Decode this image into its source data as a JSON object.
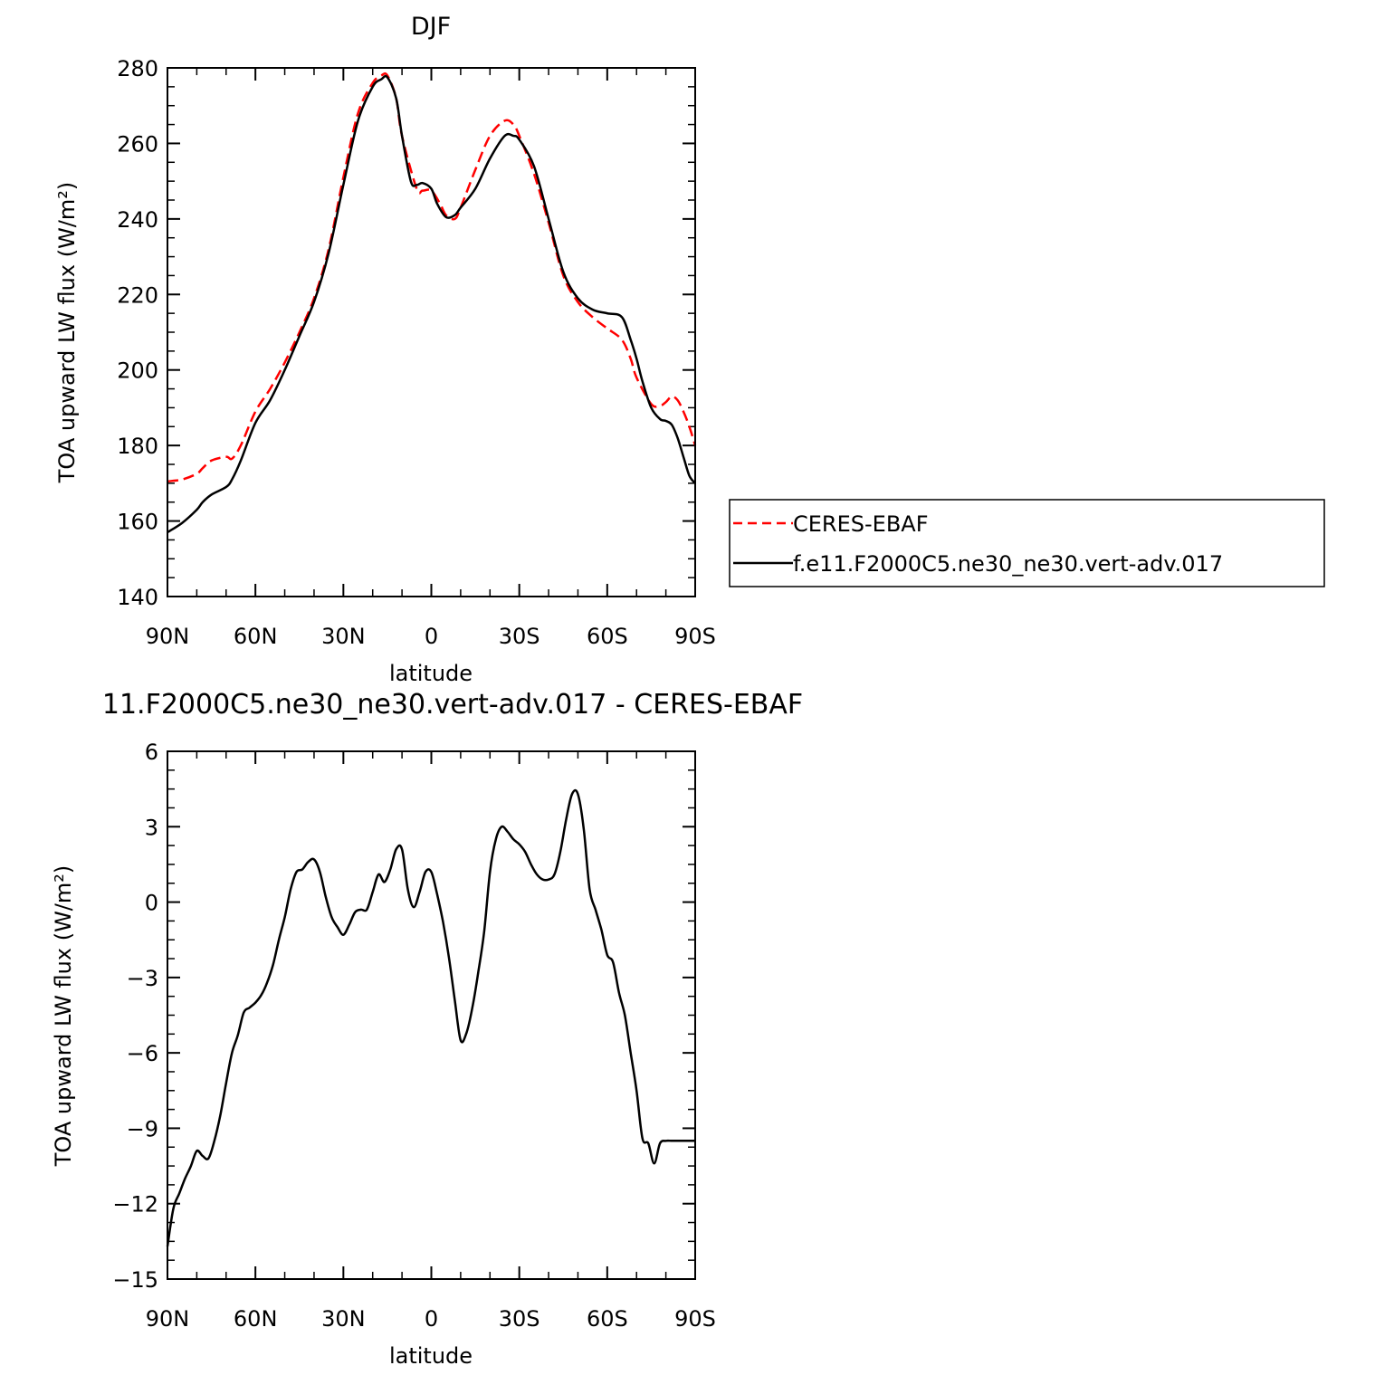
{
  "legend": {
    "entries": [
      {
        "label": "CERES-EBAF",
        "color": "#ff0000",
        "dash": "dashed"
      },
      {
        "label": "f.e11.F2000C5.ne30_ne30.vert-adv.017",
        "color": "#000000",
        "dash": "solid"
      }
    ]
  },
  "chart_data": [
    {
      "type": "line",
      "title": "DJF",
      "xlabel": "latitude",
      "ylabel": "TOA upward LW flux (W/m²)",
      "xlim": [
        90,
        -90
      ],
      "ylim": [
        140,
        280
      ],
      "yticks": [
        140,
        160,
        180,
        200,
        220,
        240,
        260,
        280
      ],
      "xticks": [
        90,
        60,
        30,
        0,
        -30,
        -60,
        -90
      ],
      "xticklabels": [
        "90N",
        "60N",
        "30N",
        "0",
        "30S",
        "60S",
        "90S"
      ],
      "grid": false,
      "legend_position": "right",
      "series": [
        {
          "name": "CERES-EBAF",
          "color": "#ff0000",
          "dash": "dashed",
          "x": [
            90,
            85,
            80,
            78,
            75,
            70,
            68,
            65,
            60,
            55,
            50,
            45,
            40,
            35,
            30,
            25,
            20,
            17,
            15,
            12,
            10,
            5,
            3,
            0,
            -3,
            -5,
            -8,
            -10,
            -15,
            -20,
            -25,
            -28,
            -30,
            -35,
            -40,
            -45,
            -50,
            -55,
            -60,
            -65,
            -68,
            -70,
            -75,
            -78,
            -80,
            -82,
            -84,
            -86,
            -88,
            -90
          ],
          "y": [
            170.5,
            171,
            172.5,
            174,
            176,
            177,
            176.5,
            180,
            189,
            195,
            202,
            210,
            219,
            232,
            251,
            268,
            276,
            278,
            278,
            272,
            262,
            248,
            247.5,
            247.5,
            244,
            241,
            240,
            243,
            253,
            262,
            266,
            265,
            262,
            252,
            239,
            225,
            218,
            214,
            211,
            208,
            203,
            198,
            191,
            190.5,
            191.5,
            193,
            192,
            189,
            185,
            180
          ]
        },
        {
          "name": "f.e11.F2000C5.ne30_ne30.vert-adv.017",
          "color": "#000000",
          "dash": "solid",
          "x": [
            90,
            85,
            80,
            78,
            75,
            70,
            68,
            65,
            60,
            55,
            50,
            45,
            40,
            35,
            30,
            25,
            20,
            17,
            15,
            12,
            10,
            7,
            5,
            3,
            0,
            -2,
            -5,
            -8,
            -10,
            -15,
            -20,
            -25,
            -28,
            -30,
            -35,
            -40,
            -45,
            -50,
            -55,
            -60,
            -65,
            -68,
            -70,
            -72,
            -75,
            -78,
            -80,
            -82,
            -84,
            -86,
            -88,
            -90
          ],
          "y": [
            157,
            159.5,
            163,
            165,
            167,
            169,
            171,
            176,
            186,
            192,
            200,
            209,
            218,
            231,
            249,
            266,
            275,
            277,
            277.5,
            272,
            262,
            250,
            249,
            249.5,
            248,
            244,
            240.5,
            241,
            243,
            248,
            256,
            262,
            262,
            261,
            254,
            240,
            226,
            219,
            216,
            215,
            214,
            208,
            203,
            197,
            190,
            187,
            186.5,
            185.5,
            182,
            177,
            172,
            170
          ]
        }
      ]
    },
    {
      "type": "line",
      "title": "11.F2000C5.ne30_ne30.vert-adv.017 - CERES-EBAF",
      "xlabel": "latitude",
      "ylabel": "TOA upward LW flux (W/m²)",
      "xlim": [
        90,
        -90
      ],
      "ylim": [
        -15,
        6
      ],
      "yticks": [
        -15,
        -12,
        -9,
        -6,
        -3,
        0,
        3,
        6
      ],
      "xticks": [
        90,
        60,
        30,
        0,
        -30,
        -60,
        -90
      ],
      "xticklabels": [
        "90N",
        "60N",
        "30N",
        "0",
        "30S",
        "60S",
        "90S"
      ],
      "grid": false,
      "series": [
        {
          "name": "",
          "color": "#000000",
          "dash": "solid",
          "x": [
            90,
            88,
            86,
            84,
            82,
            80,
            78,
            76,
            74,
            72,
            70,
            68,
            66,
            64,
            62,
            60,
            58,
            56,
            54,
            52,
            50,
            48,
            46,
            44,
            42,
            40,
            38,
            36,
            34,
            32,
            30,
            28,
            26,
            24,
            22,
            20,
            18,
            16,
            14,
            12,
            10,
            8,
            6,
            4,
            2,
            0,
            -2,
            -4,
            -6,
            -8,
            -10,
            -12,
            -14,
            -16,
            -18,
            -20,
            -22,
            -24,
            -26,
            -28,
            -30,
            -32,
            -34,
            -36,
            -38,
            -40,
            -42,
            -44,
            -46,
            -48,
            -50,
            -52,
            -54,
            -56,
            -58,
            -60,
            -62,
            -64,
            -66,
            -68,
            -70,
            -72,
            -74,
            -76,
            -78,
            -80,
            -82,
            -84,
            -86,
            -88,
            -90
          ],
          "y": [
            -13.7,
            -12.2,
            -11.6,
            -11,
            -10.5,
            -9.9,
            -10.1,
            -10.2,
            -9.5,
            -8.5,
            -7.2,
            -6,
            -5.3,
            -4.4,
            -4.2,
            -4,
            -3.7,
            -3.2,
            -2.5,
            -1.5,
            -0.6,
            0.5,
            1.2,
            1.3,
            1.6,
            1.7,
            1.2,
            0.2,
            -0.6,
            -1,
            -1.3,
            -0.9,
            -0.4,
            -0.3,
            -0.3,
            0.4,
            1.1,
            0.8,
            1.3,
            2.1,
            2.1,
            0.5,
            -0.2,
            0.4,
            1.2,
            1.2,
            0.3,
            -0.8,
            -2.2,
            -3.9,
            -5.5,
            -5.2,
            -4.2,
            -2.8,
            -1.2,
            1.2,
            2.5,
            3,
            2.8,
            2.5,
            2.3,
            2,
            1.5,
            1.1,
            0.9,
            0.9,
            1.1,
            2,
            3.3,
            4.3,
            4.3,
            2.9,
            0.5,
            -0.3,
            -1.1,
            -2.1,
            -2.4,
            -3.6,
            -4.5,
            -6,
            -7.5,
            -9.4,
            -9.6,
            -10.4,
            -9.6,
            -9.5,
            -9.5,
            -9.5,
            -9.5,
            -9.5,
            -9.5
          ]
        }
      ]
    }
  ]
}
